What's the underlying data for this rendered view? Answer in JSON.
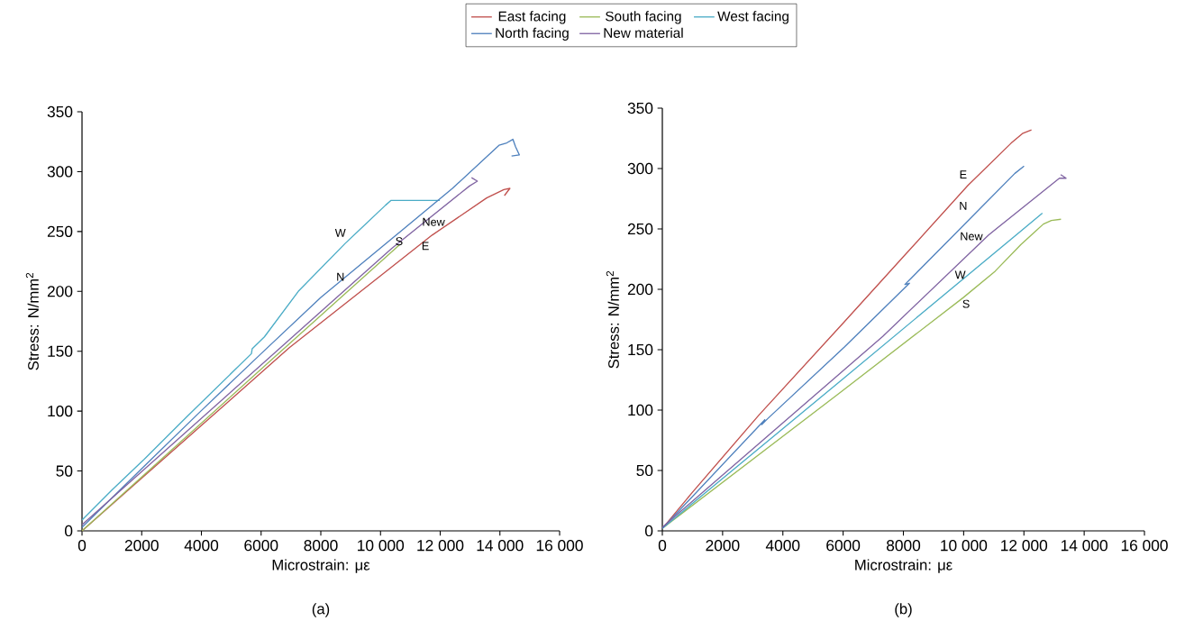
{
  "chart_data": [
    {
      "type": "line",
      "xlabel": "Microstrain: με",
      "ylabel": "Stress: N/mm$^{2}$",
      "legend": "top",
      "xlim": [
        0,
        16000
      ],
      "ylim": [
        0,
        350
      ],
      "xticks": [
        0,
        2000,
        4000,
        6000,
        8000,
        {
          "value": 10000,
          "label": "10 000"
        },
        {
          "value": 12000,
          "label": "12 000"
        },
        {
          "value": 14000,
          "label": "14 000"
        },
        {
          "value": 16000,
          "label": "16 000"
        }
      ],
      "yticks": [
        0,
        50,
        100,
        150,
        200,
        250,
        300,
        350
      ],
      "series": [
        {
          "name": "East facing",
          "color": "#c0504d",
          "x": [
            0,
            2000,
            4000,
            6945,
            10000,
            11730,
            13555,
            14130,
            14335,
            14150
          ],
          "values": [
            0,
            44,
            88,
            153,
            213,
            247,
            278,
            285,
            286,
            280
          ]
        },
        {
          "name": "South facing",
          "color": "#9bbb59",
          "x": [
            0,
            2000,
            6220,
            10640
          ],
          "values": [
            0,
            45,
            140,
            239
          ]
        },
        {
          "name": "West facing",
          "color": "#4bacc6",
          "x": [
            0,
            1000,
            2053,
            3500,
            5675,
            5700,
            6110,
            7245,
            8815,
            10170,
            10355,
            11985
          ],
          "values": [
            9,
            34,
            59,
            95,
            148,
            152,
            162,
            200,
            240,
            272,
            276,
            276
          ]
        },
        {
          "name": "North facing",
          "color": "#4f81bd",
          "x": [
            0,
            2000,
            3980,
            6000,
            8000,
            10380,
            12410,
            13970,
            14230,
            14435,
            14520,
            14650,
            14390
          ],
          "values": [
            3,
            52,
            100,
            148,
            195,
            244,
            286,
            322,
            324,
            327,
            321,
            314,
            313
          ]
        },
        {
          "name": "New material",
          "color": "#8064a2",
          "x": [
            0,
            4000,
            8000,
            10380,
            12980,
            13245,
            13050
          ],
          "values": [
            5,
            94,
            183,
            236,
            288,
            292,
            295
          ]
        }
      ],
      "annotations": [
        "W",
        "N",
        "S",
        "New",
        "E",
        "(a)"
      ]
    },
    {
      "type": "line",
      "xlabel": "Microstrain: με",
      "ylabel": "Stress: N/mm$^{2}$",
      "xlim": [
        0,
        16000
      ],
      "ylim": [
        0,
        350
      ],
      "xticks": [
        0,
        2000,
        4000,
        6000,
        8000,
        {
          "value": 10000,
          "label": "10 000"
        },
        {
          "value": 12000,
          "label": "12 000"
        },
        {
          "value": 14000,
          "label": "14 000"
        },
        {
          "value": 16000,
          "label": "16 000"
        }
      ],
      "yticks": [
        0,
        50,
        100,
        150,
        200,
        250,
        300,
        350
      ],
      "series": [
        {
          "color": "#c0504d",
          "x": [
            0,
            1000,
            3209,
            6000,
            8000,
            10140,
            11575,
            11950,
            12250
          ],
          "values": [
            2,
            32,
            96,
            172,
            227,
            286,
            321,
            329,
            332
          ]
        },
        {
          "color": "#9bbb59",
          "x": [
            0,
            5873,
            9980,
            11045,
            11895,
            12645,
            12910,
            13230
          ],
          "values": [
            2,
            114,
            193,
            215,
            237,
            254,
            257,
            258
          ]
        },
        {
          "color": "#4bacc6",
          "x": [
            0,
            6000,
            12612
          ],
          "values": [
            2,
            126,
            263
          ]
        },
        {
          "color": "#4f81bd",
          "x": [
            0,
            3400,
            3300,
            3500,
            6035,
            8200,
            8050,
            8250,
            10512,
            11700,
            12005
          ],
          "values": [
            2,
            92,
            88,
            93,
            152,
            205,
            204,
            209,
            266,
            296,
            302
          ]
        },
        {
          "color": "#8064a2",
          "x": [
            0,
            7315,
            10828,
            13177,
            13400,
            13220
          ],
          "values": [
            3,
            161,
            245,
            292,
            292,
            295
          ]
        }
      ],
      "annotations": [
        "E",
        "N",
        "New",
        "W",
        "S",
        "(b)"
      ]
    }
  ]
}
